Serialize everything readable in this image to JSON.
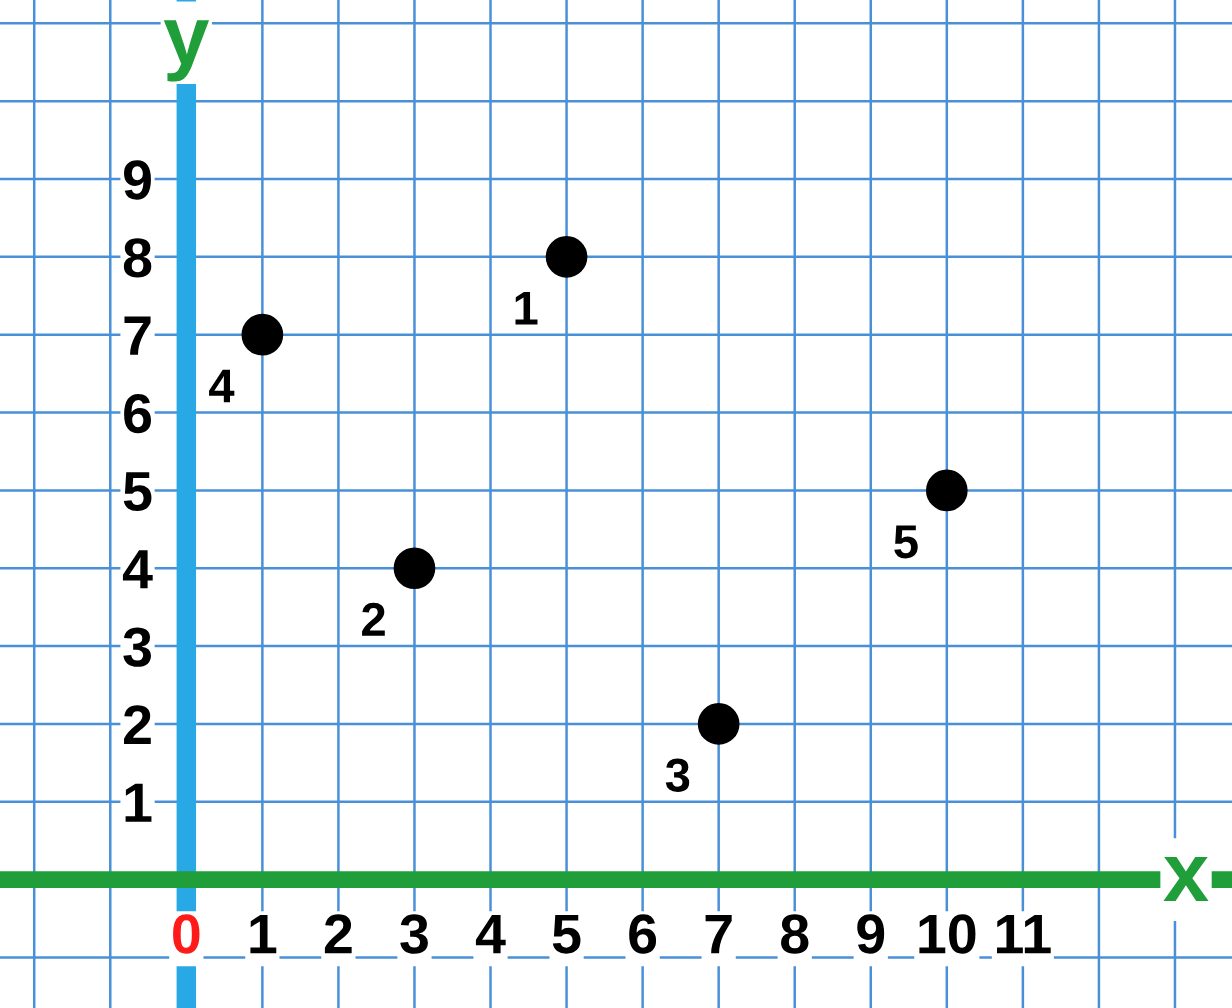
{
  "chart_data": {
    "type": "scatter",
    "xlabel": "x",
    "ylabel": "y",
    "x": [
      5,
      3,
      7,
      1,
      10
    ],
    "series": [
      {
        "color": "#000000",
        "values": [
          8,
          4,
          2,
          7,
          5
        ]
      }
    ],
    "annotations": [
      {
        "text": "1",
        "x": 5,
        "y": 8
      },
      {
        "text": "2",
        "x": 3,
        "y": 4
      },
      {
        "text": "3",
        "x": 7,
        "y": 2
      },
      {
        "text": "4",
        "x": 1,
        "y": 7
      },
      {
        "text": "5",
        "x": 10,
        "y": 5
      }
    ],
    "xlim": [
      -2.45,
      13.75
    ],
    "ylim": [
      -1.65,
      11.3
    ],
    "xticks": [
      0,
      1,
      2,
      3,
      4,
      5,
      6,
      7,
      8,
      9,
      10,
      11
    ],
    "yticks": [
      1,
      2,
      3,
      4,
      5,
      6,
      7,
      8,
      9
    ],
    "grid": true,
    "marker": "circle"
  }
}
